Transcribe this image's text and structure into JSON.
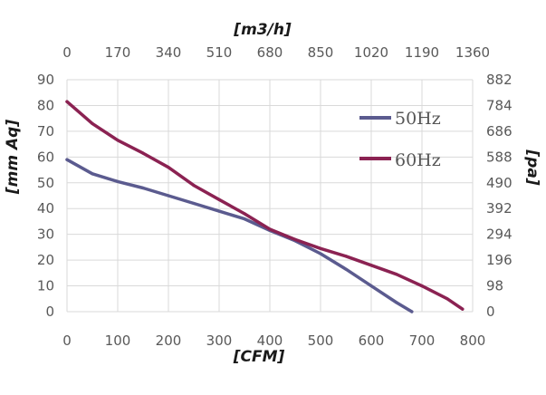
{
  "chart_data": {
    "type": "line",
    "title": "",
    "xlabel": "[CFM]",
    "ylabel": "[mm Aq]",
    "x2label": "[m3/h]",
    "y2label": "[pa]",
    "xlim": [
      0,
      800
    ],
    "ylim": [
      0,
      90
    ],
    "x_ticks": [
      "0",
      "100",
      "200",
      "300",
      "400",
      "500",
      "600",
      "700",
      "800"
    ],
    "y_ticks": [
      "0",
      "10",
      "20",
      "30",
      "40",
      "50",
      "60",
      "70",
      "80",
      "90"
    ],
    "x2_ticks": [
      "0",
      "170",
      "340",
      "510",
      "680",
      "850",
      "1020",
      "1190",
      "1360"
    ],
    "y2_ticks": [
      "0",
      "98",
      "196",
      "294",
      "392",
      "490",
      "588",
      "686",
      "784",
      "882"
    ],
    "grid": true,
    "legend_position": "right",
    "series": [
      {
        "name": "50Hz",
        "color": "#5b5b8f",
        "x": [
          0,
          50,
          100,
          150,
          200,
          250,
          300,
          350,
          400,
          450,
          500,
          550,
          600,
          650,
          680
        ],
        "y": [
          59,
          53.5,
          50.5,
          48,
          45,
          42,
          39,
          36,
          31.5,
          27.5,
          22.5,
          16.5,
          10,
          3.5,
          0
        ]
      },
      {
        "name": "60Hz",
        "color": "#8b2252",
        "x": [
          0,
          50,
          100,
          150,
          200,
          250,
          300,
          350,
          400,
          450,
          500,
          550,
          600,
          650,
          700,
          750,
          780
        ],
        "y": [
          81.5,
          73,
          66.5,
          61.5,
          56,
          49,
          43.5,
          38,
          32,
          28,
          24.5,
          21.5,
          18,
          14.5,
          10,
          5,
          1
        ]
      }
    ]
  }
}
